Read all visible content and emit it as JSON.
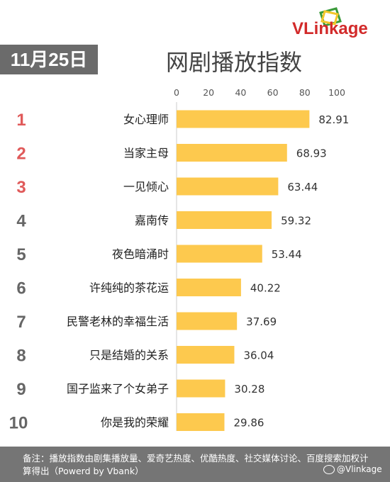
{
  "brand": {
    "name": "VLinkage",
    "colors": {
      "logo_red": "#d22a2a",
      "logo_green": "#3a9a3a",
      "logo_yellow": "#f3c62a"
    }
  },
  "date_badge": "11月25日",
  "title": "网剧播放指数",
  "footer": {
    "note": "备注：播放指数由剧集播放量、爱奇艺热度、优酷热度、社交媒体讨论、百度搜索加权计算得出（Powerd by Vbank）",
    "watermark": "@Vlinkage"
  },
  "colors": {
    "bar": "#fdc94e",
    "top_rank": "#e05a5a",
    "rank": "#666666",
    "badge_bg": "#6b6b6b",
    "footer_bg": "#757575"
  },
  "chart_data": {
    "type": "bar",
    "orientation": "horizontal",
    "title": "网剧播放指数",
    "xlim": [
      0,
      100
    ],
    "ticks": [
      0,
      20,
      40,
      60,
      80,
      100
    ],
    "ranks": [
      "1",
      "2",
      "3",
      "4",
      "5",
      "6",
      "7",
      "8",
      "9",
      "10"
    ],
    "categories": [
      "女心理师",
      "当家主母",
      "一见倾心",
      "嘉南传",
      "夜色暗涌时",
      "许纯纯的茶花运",
      "民警老林的幸福生活",
      "只是结婚的关系",
      "国子监来了个女弟子",
      "你是我的荣耀"
    ],
    "values": [
      82.91,
      68.93,
      63.44,
      59.32,
      53.44,
      40.22,
      37.69,
      36.04,
      30.28,
      29.86
    ],
    "value_labels": [
      "82.91",
      "68.93",
      "63.44",
      "59.32",
      "53.44",
      "40.22",
      "37.69",
      "36.04",
      "30.28",
      "29.86"
    ],
    "grid": false,
    "legend": "none"
  }
}
